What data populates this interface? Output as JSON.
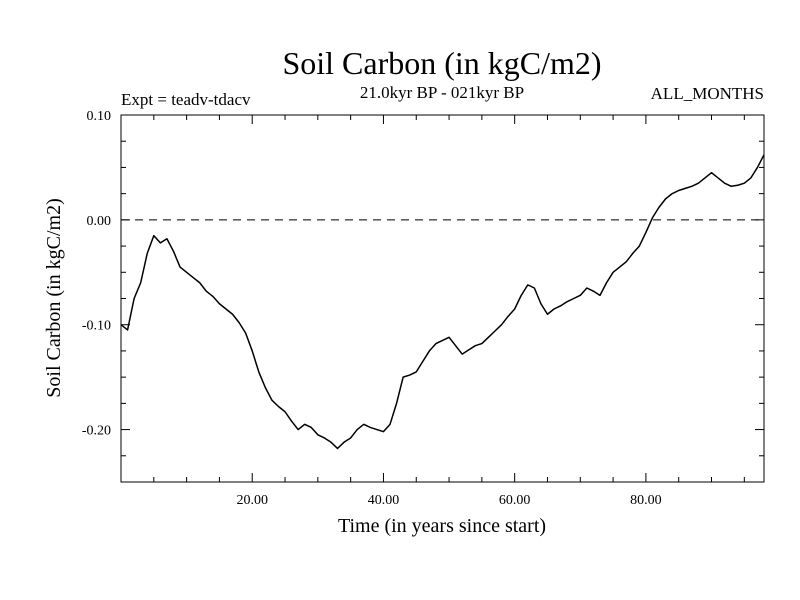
{
  "chart_data": {
    "type": "line",
    "title": "Soil Carbon (in kgC/m2)",
    "subtitle": "21.0kyr BP - 021kyr BP",
    "experiment": "Expt = teadv-tdacv",
    "period": "ALL_MONTHS",
    "xlabel": "Time (in years since start)",
    "ylabel": "Soil Carbon (in kgC/m2)",
    "xlim": [
      0,
      98
    ],
    "ylim": [
      -0.25,
      0.1
    ],
    "xticks": [
      20,
      40,
      60,
      80
    ],
    "xtick_labels": [
      "20.00",
      "40.00",
      "60.00",
      "80.00"
    ],
    "yticks": [
      0.1,
      0.0,
      -0.1,
      -0.2
    ],
    "ytick_labels": [
      "0.10",
      "0.00",
      "-0.10",
      "-0.20"
    ],
    "reference_line": 0.0,
    "series": [
      {
        "name": "Soil Carbon",
        "color": "#000000",
        "x": [
          0,
          1,
          2,
          3,
          4,
          5,
          6,
          7,
          8,
          9,
          10,
          11,
          12,
          13,
          14,
          15,
          16,
          17,
          18,
          19,
          20,
          21,
          22,
          23,
          24,
          25,
          26,
          27,
          28,
          29,
          30,
          31,
          32,
          33,
          34,
          35,
          36,
          37,
          38,
          39,
          40,
          41,
          42,
          43,
          44,
          45,
          46,
          47,
          48,
          49,
          50,
          51,
          52,
          53,
          54,
          55,
          56,
          57,
          58,
          59,
          60,
          61,
          62,
          63,
          64,
          65,
          66,
          67,
          68,
          69,
          70,
          71,
          72,
          73,
          74,
          75,
          76,
          77,
          78,
          79,
          80,
          81,
          82,
          83,
          84,
          85,
          86,
          87,
          88,
          89,
          90,
          91,
          92,
          93,
          94,
          95,
          96,
          97,
          98
        ],
        "values": [
          -0.1,
          -0.105,
          -0.075,
          -0.06,
          -0.032,
          -0.015,
          -0.022,
          -0.018,
          -0.03,
          -0.045,
          -0.05,
          -0.055,
          -0.06,
          -0.068,
          -0.073,
          -0.08,
          -0.085,
          -0.09,
          -0.098,
          -0.108,
          -0.125,
          -0.145,
          -0.16,
          -0.172,
          -0.178,
          -0.183,
          -0.192,
          -0.2,
          -0.195,
          -0.198,
          -0.205,
          -0.208,
          -0.212,
          -0.218,
          -0.212,
          -0.208,
          -0.2,
          -0.195,
          -0.198,
          -0.2,
          -0.202,
          -0.195,
          -0.175,
          -0.15,
          -0.148,
          -0.145,
          -0.135,
          -0.125,
          -0.118,
          -0.115,
          -0.112,
          -0.12,
          -0.128,
          -0.124,
          -0.12,
          -0.118,
          -0.112,
          -0.106,
          -0.1,
          -0.092,
          -0.085,
          -0.072,
          -0.062,
          -0.065,
          -0.08,
          -0.09,
          -0.085,
          -0.082,
          -0.078,
          -0.075,
          -0.072,
          -0.065,
          -0.068,
          -0.072,
          -0.06,
          -0.05,
          -0.045,
          -0.04,
          -0.032,
          -0.025,
          -0.012,
          0.002,
          0.012,
          0.02,
          0.025,
          0.028,
          0.03,
          0.032,
          0.035,
          0.04,
          0.045,
          0.04,
          0.035,
          0.032,
          0.033,
          0.035,
          0.04,
          0.05,
          0.062
        ]
      }
    ]
  }
}
